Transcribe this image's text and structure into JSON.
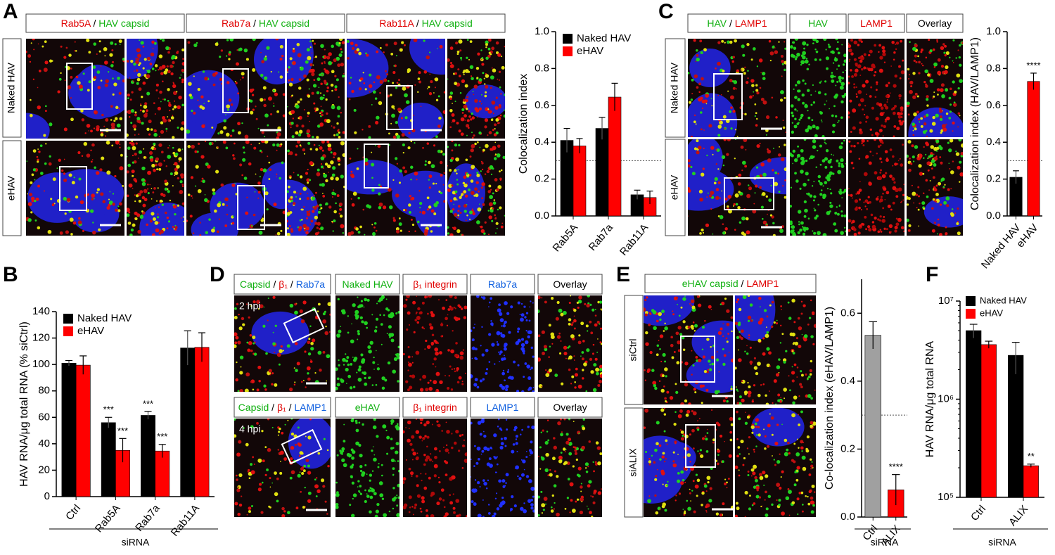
{
  "panel_a": {
    "letter": "A",
    "headers": [
      [
        "Rab5A",
        " / ",
        "HAV  capsid"
      ],
      [
        "Rab7a",
        " / ",
        "HAV  capsid"
      ],
      [
        "Rab11A",
        " / ",
        "HAV  capsid"
      ]
    ],
    "row_labels": [
      "Naked HAV",
      "eHAV"
    ]
  },
  "panel_b": {
    "letter": "B"
  },
  "panel_c": {
    "letter": "C",
    "headers": [
      [
        "HAV",
        " / ",
        "LAMP1"
      ],
      [
        "HAV"
      ],
      [
        "LAMP1"
      ],
      [
        "Overlay"
      ]
    ],
    "row_labels": [
      "Naked HAV",
      "eHAV"
    ]
  },
  "panel_d": {
    "letter": "D",
    "headers_top": [
      [
        "Capsid",
        " / ",
        "β₁",
        " / ",
        "Rab7a"
      ],
      [
        "Naked HAV"
      ],
      [
        "β₁ integrin"
      ],
      [
        "Rab7a"
      ],
      [
        "Overlay"
      ]
    ],
    "headers_bottom": [
      [
        "Capsid",
        " / ",
        "β₁",
        " / ",
        "LAMP1"
      ],
      [
        "eHAV"
      ],
      [
        "β₁ integrin"
      ],
      [
        "LAMP1"
      ],
      [
        "Overlay"
      ]
    ],
    "time_labels": [
      "2 hpi",
      "4 hpi"
    ]
  },
  "panel_e": {
    "letter": "E",
    "headers": [
      [
        "eHAV  capsid",
        " / ",
        "LAMP1"
      ]
    ],
    "row_labels": [
      "siCtrl",
      "siALIX"
    ]
  },
  "panel_f": {
    "letter": "F"
  },
  "chart_data": [
    {
      "type": "bar",
      "categories": [
        "Rab5A",
        "Rab7a",
        "Rab11A"
      ],
      "series": [
        {
          "name": "Naked HAV",
          "color": "#000000",
          "values": [
            0.41,
            0.475,
            0.115
          ],
          "errors": [
            0.065,
            0.06,
            0.025
          ]
        },
        {
          "name": "eHAV",
          "color": "#ff0000",
          "values": [
            0.38,
            0.645,
            0.1
          ],
          "errors": [
            0.04,
            0.075,
            0.035
          ]
        }
      ],
      "y_label": "Colocalization index",
      "ylim": [
        0,
        1
      ],
      "yticks": [
        {
          "value": 0,
          "label": "0.0"
        },
        {
          "value": 0.2,
          "label": "0.2"
        },
        {
          "value": 0.4,
          "label": "0.4"
        },
        {
          "value": 0.6,
          "label": "0.6"
        },
        {
          "value": 0.8,
          "label": "0.8"
        },
        {
          "value": 1,
          "label": "1.0"
        }
      ],
      "hline": 0.3,
      "legend": "upper left"
    },
    {
      "type": "bar",
      "categories": [
        "Naked HAV",
        "eHAV"
      ],
      "values": [
        0.21,
        0.73
      ],
      "errors": [
        0.035,
        0.045
      ],
      "colors": [
        "#000000",
        "#ff0000"
      ],
      "annotations": [
        null,
        "****"
      ],
      "y_label": "Colocalization index (HAV/LAMP1)",
      "ylim": [
        0,
        1
      ],
      "yticks": [
        {
          "value": 0,
          "label": "0.0"
        },
        {
          "value": 0.2,
          "label": "0.2"
        },
        {
          "value": 0.4,
          "label": "0.4"
        },
        {
          "value": 0.6,
          "label": "0.6"
        },
        {
          "value": 0.8,
          "label": "0.8"
        },
        {
          "value": 1,
          "label": "1.0"
        }
      ],
      "hline": 0.3
    },
    {
      "type": "bar",
      "categories": [
        "Ctrl",
        "Rab5A",
        "Rab7a",
        "Rab11A"
      ],
      "series": [
        {
          "name": "Naked HAV",
          "color": "#000000",
          "values": [
            101,
            56,
            61.5,
            112.5
          ],
          "errors": [
            2,
            4,
            3,
            13
          ],
          "annotations": [
            null,
            "***",
            "***",
            null
          ]
        },
        {
          "name": "eHAV",
          "color": "#ff0000",
          "values": [
            99.5,
            35,
            34.5,
            113
          ],
          "errors": [
            7,
            9,
            5,
            11
          ],
          "annotations": [
            null,
            "***",
            "***",
            null
          ]
        }
      ],
      "y_label": "HAV RNA/μg total RNA (% siCtrl)",
      "x_label": "siRNA",
      "ylim": [
        0,
        140
      ],
      "yticks": [
        0,
        20,
        40,
        60,
        80,
        100,
        120,
        140
      ],
      "legend": "upper left"
    },
    {
      "type": "bar",
      "categories": [
        "Ctrl",
        "ALIX"
      ],
      "values": [
        0.535,
        0.08
      ],
      "errors": [
        0.04,
        0.045
      ],
      "colors": [
        "#a0a0a0",
        "#ff0000"
      ],
      "annotations": [
        null,
        "****"
      ],
      "y_label": "Co-localization index (eHAV/LAMP1)",
      "x_label": "siRNA",
      "ylim": [
        0,
        0.7
      ],
      "yticks": [
        {
          "value": 0,
          "label": "0.0"
        },
        {
          "value": 0.2,
          "label": "0.2"
        },
        {
          "value": 0.4,
          "label": "0.4"
        },
        {
          "value": 0.6,
          "label": "0.6"
        }
      ],
      "hline": 0.3
    },
    {
      "type": "bar",
      "categories": [
        "Ctrl",
        "ALIX"
      ],
      "series": [
        {
          "name": "Naked HAV",
          "color": "#000000",
          "values": [
            5000000,
            2800000
          ],
          "errors": [
            800000,
            1000000
          ],
          "annotations": [
            null,
            null
          ]
        },
        {
          "name": "eHAV",
          "color": "#ff0000",
          "values": [
            3600000,
            210000
          ],
          "errors": [
            300000,
            8000
          ],
          "annotations": [
            null,
            "**"
          ]
        }
      ],
      "y_label": "HAV RNA/μg total RNA",
      "x_label": "siRNA",
      "log_scale": true,
      "ylim": [
        100000,
        10000000
      ],
      "yticks": [
        {
          "value": 100000,
          "label": "10⁵"
        },
        {
          "value": 1000000,
          "label": "10⁶"
        },
        {
          "value": 10000000,
          "label": "10⁷"
        }
      ],
      "legend": "upper left"
    }
  ]
}
